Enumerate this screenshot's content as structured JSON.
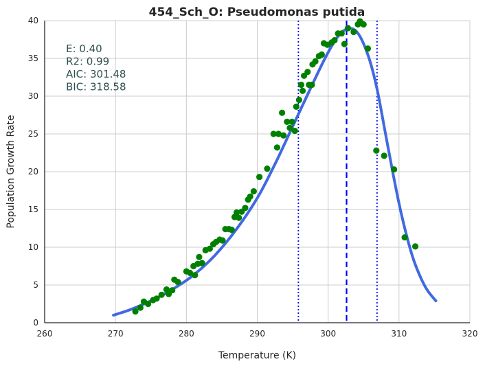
{
  "chart_data": {
    "type": "scatter",
    "title": "454_Sch_O: Pseudomonas putida",
    "xlabel": "Temperature (K)",
    "ylabel": "Population Growth Rate",
    "xlim": [
      260,
      320
    ],
    "ylim": [
      0,
      40
    ],
    "xticks": [
      "260",
      "270",
      "280",
      "290",
      "300",
      "310",
      "320"
    ],
    "yticks": [
      "0",
      "5",
      "10",
      "15",
      "20",
      "25",
      "30",
      "35",
      "40"
    ],
    "grid": true,
    "stats_text": [
      "E:  0.40",
      "R2:  0.99",
      "AIC: 301.48",
      "BIC: 318.58"
    ],
    "colors": {
      "points": "#008000",
      "fit": "#4169e1",
      "vlines": "#0000ff",
      "grid": "#cccccc",
      "axis": "#262626"
    },
    "points": [
      [
        272.8,
        1.5
      ],
      [
        273.5,
        2.0
      ],
      [
        274.0,
        2.8
      ],
      [
        274.6,
        2.5
      ],
      [
        275.3,
        3.0
      ],
      [
        275.8,
        3.2
      ],
      [
        276.5,
        3.7
      ],
      [
        277.2,
        4.4
      ],
      [
        277.5,
        3.8
      ],
      [
        278.0,
        4.3
      ],
      [
        278.3,
        5.7
      ],
      [
        278.8,
        5.4
      ],
      [
        280.0,
        6.8
      ],
      [
        280.5,
        6.6
      ],
      [
        281.0,
        7.5
      ],
      [
        281.2,
        6.3
      ],
      [
        281.6,
        7.8
      ],
      [
        281.8,
        8.7
      ],
      [
        282.2,
        7.9
      ],
      [
        282.7,
        9.6
      ],
      [
        283.3,
        9.8
      ],
      [
        283.8,
        10.4
      ],
      [
        284.2,
        10.7
      ],
      [
        284.7,
        11.0
      ],
      [
        285.1,
        10.9
      ],
      [
        285.5,
        12.4
      ],
      [
        286.0,
        12.4
      ],
      [
        286.4,
        12.3
      ],
      [
        286.8,
        14.0
      ],
      [
        287.1,
        14.6
      ],
      [
        287.4,
        13.9
      ],
      [
        287.8,
        14.7
      ],
      [
        288.3,
        15.2
      ],
      [
        288.7,
        16.3
      ],
      [
        289.0,
        16.7
      ],
      [
        289.5,
        17.4
      ],
      [
        290.3,
        19.3
      ],
      [
        291.4,
        20.4
      ],
      [
        292.3,
        25.0
      ],
      [
        292.8,
        23.2
      ],
      [
        293.0,
        25.0
      ],
      [
        293.5,
        27.8
      ],
      [
        293.7,
        24.8
      ],
      [
        294.2,
        26.6
      ],
      [
        294.6,
        25.8
      ],
      [
        294.9,
        26.6
      ],
      [
        295.3,
        25.4
      ],
      [
        295.5,
        28.6
      ],
      [
        295.9,
        29.5
      ],
      [
        296.2,
        31.5
      ],
      [
        296.4,
        30.7
      ],
      [
        296.6,
        32.7
      ],
      [
        297.1,
        33.2
      ],
      [
        297.3,
        31.5
      ],
      [
        297.7,
        31.5
      ],
      [
        297.8,
        34.2
      ],
      [
        298.2,
        34.6
      ],
      [
        298.7,
        35.3
      ],
      [
        299.1,
        35.5
      ],
      [
        299.4,
        37.0
      ],
      [
        299.9,
        36.8
      ],
      [
        300.5,
        37.1
      ],
      [
        300.9,
        37.4
      ],
      [
        301.4,
        38.3
      ],
      [
        301.9,
        38.3
      ],
      [
        302.3,
        36.9
      ],
      [
        302.8,
        39.0
      ],
      [
        303.6,
        38.5
      ],
      [
        304.2,
        39.5
      ],
      [
        304.5,
        39.9
      ],
      [
        305.0,
        39.5
      ],
      [
        305.6,
        36.3
      ],
      [
        306.8,
        22.8
      ],
      [
        307.9,
        22.1
      ],
      [
        309.3,
        20.3
      ],
      [
        310.8,
        11.3
      ],
      [
        312.3,
        10.1
      ]
    ],
    "fit_points": [
      [
        269.7,
        1.0
      ],
      [
        272.0,
        1.7
      ],
      [
        275.0,
        2.9
      ],
      [
        278.0,
        4.4
      ],
      [
        281.0,
        6.3
      ],
      [
        284.0,
        8.9
      ],
      [
        287.0,
        12.3
      ],
      [
        290.0,
        16.5
      ],
      [
        292.5,
        21.0
      ],
      [
        295.0,
        26.0
      ],
      [
        297.5,
        31.0
      ],
      [
        299.5,
        34.9
      ],
      [
        301.0,
        37.4
      ],
      [
        302.0,
        38.5
      ],
      [
        302.7,
        38.9
      ],
      [
        303.5,
        38.9
      ],
      [
        304.3,
        38.2
      ],
      [
        305.2,
        36.5
      ],
      [
        306.1,
        34.0
      ],
      [
        307.0,
        30.5
      ],
      [
        308.0,
        25.5
      ],
      [
        309.0,
        20.5
      ],
      [
        310.0,
        15.8
      ],
      [
        311.0,
        11.8
      ],
      [
        312.0,
        8.5
      ],
      [
        313.0,
        6.1
      ],
      [
        314.0,
        4.3
      ],
      [
        315.2,
        2.9
      ]
    ],
    "vlines": [
      {
        "x": 295.8,
        "style": "dotted"
      },
      {
        "x": 302.6,
        "style": "dashed"
      },
      {
        "x": 306.9,
        "style": "dotted"
      }
    ]
  }
}
